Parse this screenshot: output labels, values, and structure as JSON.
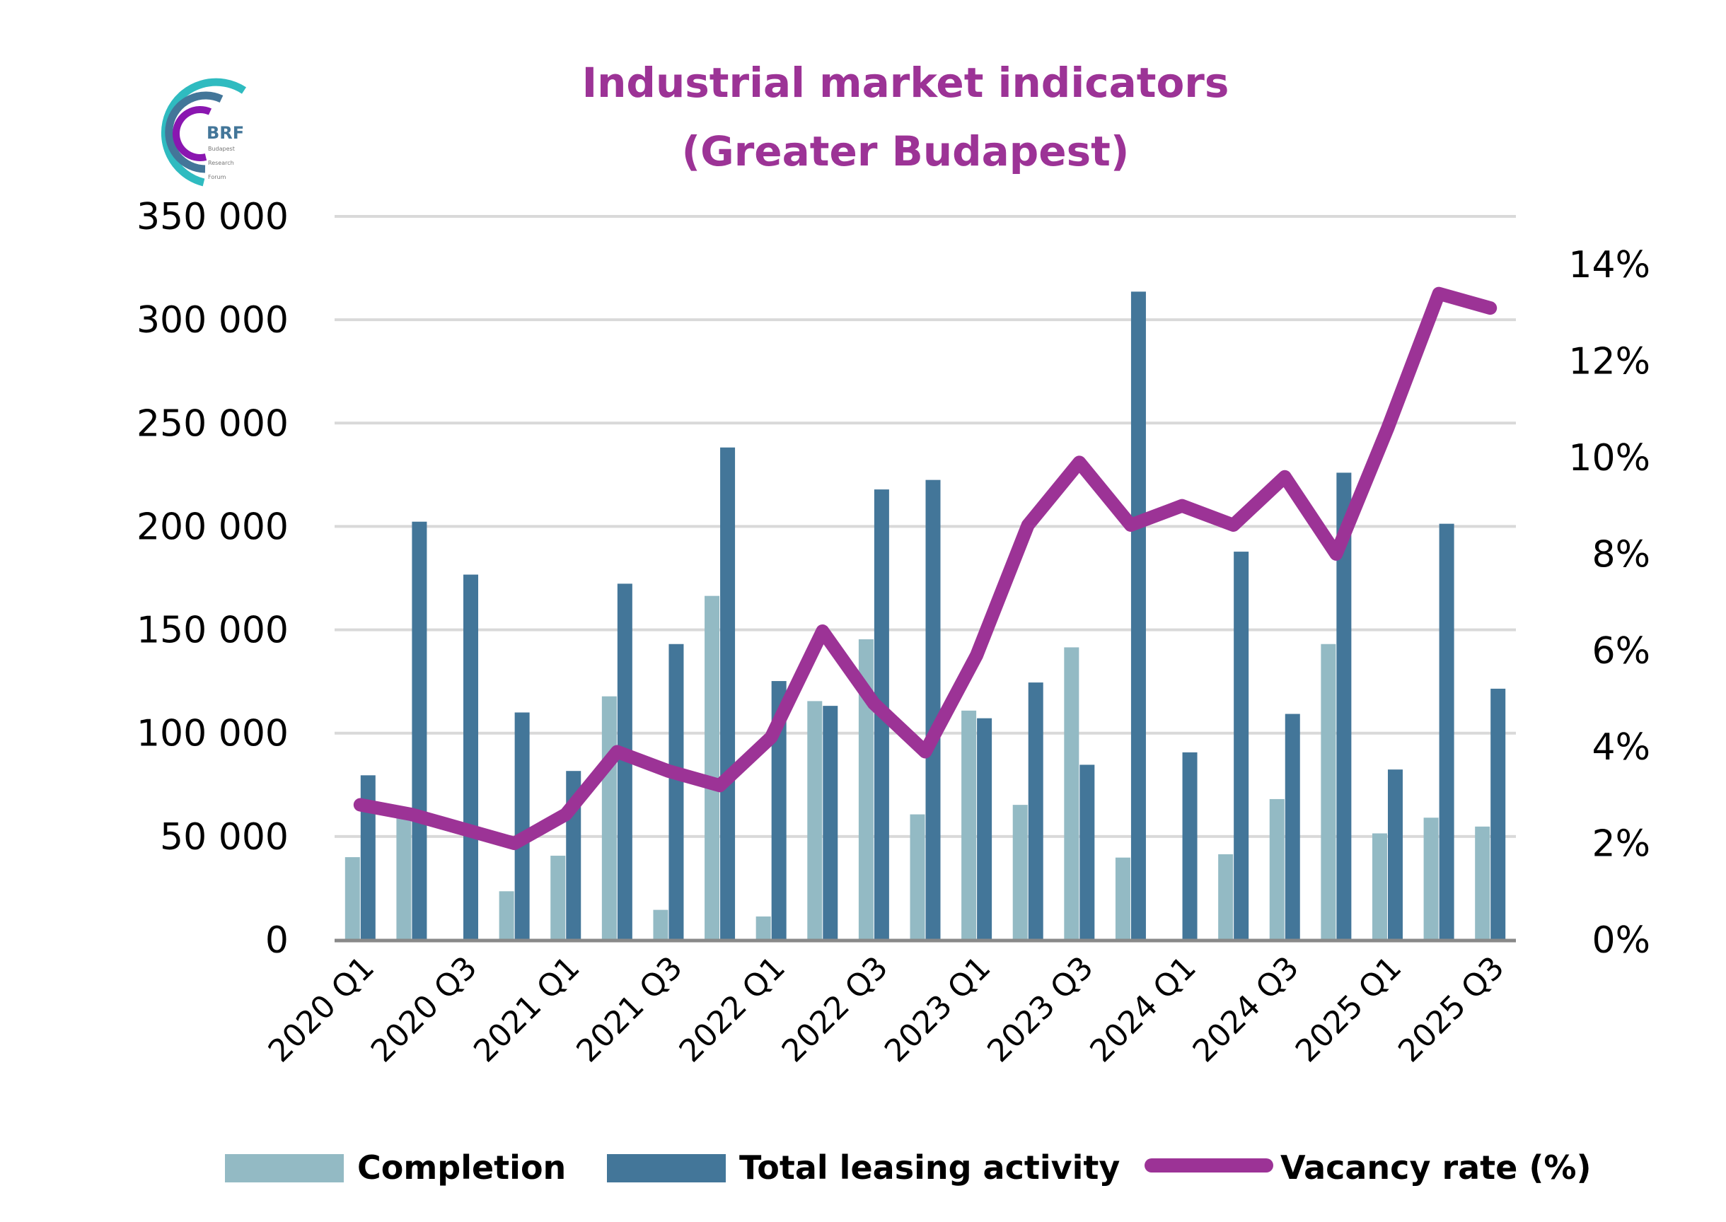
{
  "logo": {
    "text": "BRF",
    "sub_lines": [
      "Budapest",
      "Research",
      "Forum"
    ]
  },
  "chart_data": {
    "type": "bar",
    "title": "Industrial market indicators",
    "subtitle": "(Greater Budapest)",
    "xlabel": "",
    "ylabel": "",
    "categories": [
      "2020 Q1",
      "2020 Q2",
      "2020 Q3",
      "2020 Q4",
      "2021 Q1",
      "2021 Q2",
      "2021 Q3",
      "2021 Q4",
      "2022 Q1",
      "2022 Q2",
      "2022 Q3",
      "2022 Q4",
      "2023 Q1",
      "2023 Q2",
      "2023 Q3",
      "2023 Q4",
      "2024 Q1",
      "2024 Q2",
      "2024 Q3",
      "2024 Q4",
      "2025 Q1",
      "2025 Q2",
      "2025 Q3"
    ],
    "x_tick_labels": [
      "2020 Q1",
      "",
      "2020 Q3",
      "",
      "2021 Q1",
      "",
      "2021 Q3",
      "",
      "2022 Q1",
      "",
      "2022 Q3",
      "",
      "2023 Q1",
      "",
      "2023 Q3",
      "",
      "2024 Q1",
      "",
      "2024 Q3",
      "",
      "2025 Q1",
      "",
      "2025 Q3"
    ],
    "series": [
      {
        "name": "Completion",
        "type": "bar",
        "axis": "left",
        "color": "#93BAC4",
        "values": [
          40000,
          60000,
          0,
          23500,
          40700,
          117800,
          14500,
          166400,
          11300,
          115500,
          145400,
          60700,
          110900,
          65300,
          141500,
          39800,
          0,
          41400,
          68100,
          143100,
          51500,
          59100,
          54800
        ]
      },
      {
        "name": "Total leasing activity",
        "type": "bar",
        "axis": "left",
        "color": "#437699",
        "values": [
          79600,
          202300,
          176700,
          110000,
          81700,
          172300,
          143100,
          238200,
          125200,
          113200,
          217900,
          222500,
          107200,
          124500,
          84700,
          313600,
          90700,
          187800,
          109300,
          226000,
          82400,
          201300,
          121500
        ]
      },
      {
        "name": "Vacancy rate (%)",
        "type": "line",
        "axis": "right",
        "color": "#9C3396",
        "values": [
          2.8,
          2.6,
          2.3,
          2.0,
          2.6,
          3.9,
          3.5,
          3.2,
          4.2,
          6.4,
          4.9,
          3.9,
          5.9,
          8.6,
          9.9,
          8.6,
          9.0,
          8.6,
          9.6,
          8.0,
          10.6,
          13.4,
          13.1
        ]
      }
    ],
    "y_left": {
      "ylim": [
        0,
        350000
      ],
      "ticks": [
        0,
        50000,
        100000,
        150000,
        200000,
        250000,
        300000,
        350000
      ],
      "tick_labels": [
        "0",
        "50 000",
        "100 000",
        "150 000",
        "200 000",
        "250 000",
        "300 000",
        "350 000"
      ]
    },
    "y_right": {
      "ylim": [
        0,
        15
      ],
      "ticks": [
        0,
        2,
        4,
        6,
        8,
        10,
        12,
        14
      ],
      "tick_labels": [
        "0%",
        "2%",
        "4%",
        "6%",
        "8%",
        "10%",
        "12%",
        "14%"
      ]
    },
    "grid": true,
    "grid_color": "#D9D9D9",
    "axis_color": "#898989",
    "legend": {
      "position": "bottom",
      "entries": [
        "Completion",
        "Total leasing activity",
        "Vacancy rate (%)"
      ]
    }
  }
}
